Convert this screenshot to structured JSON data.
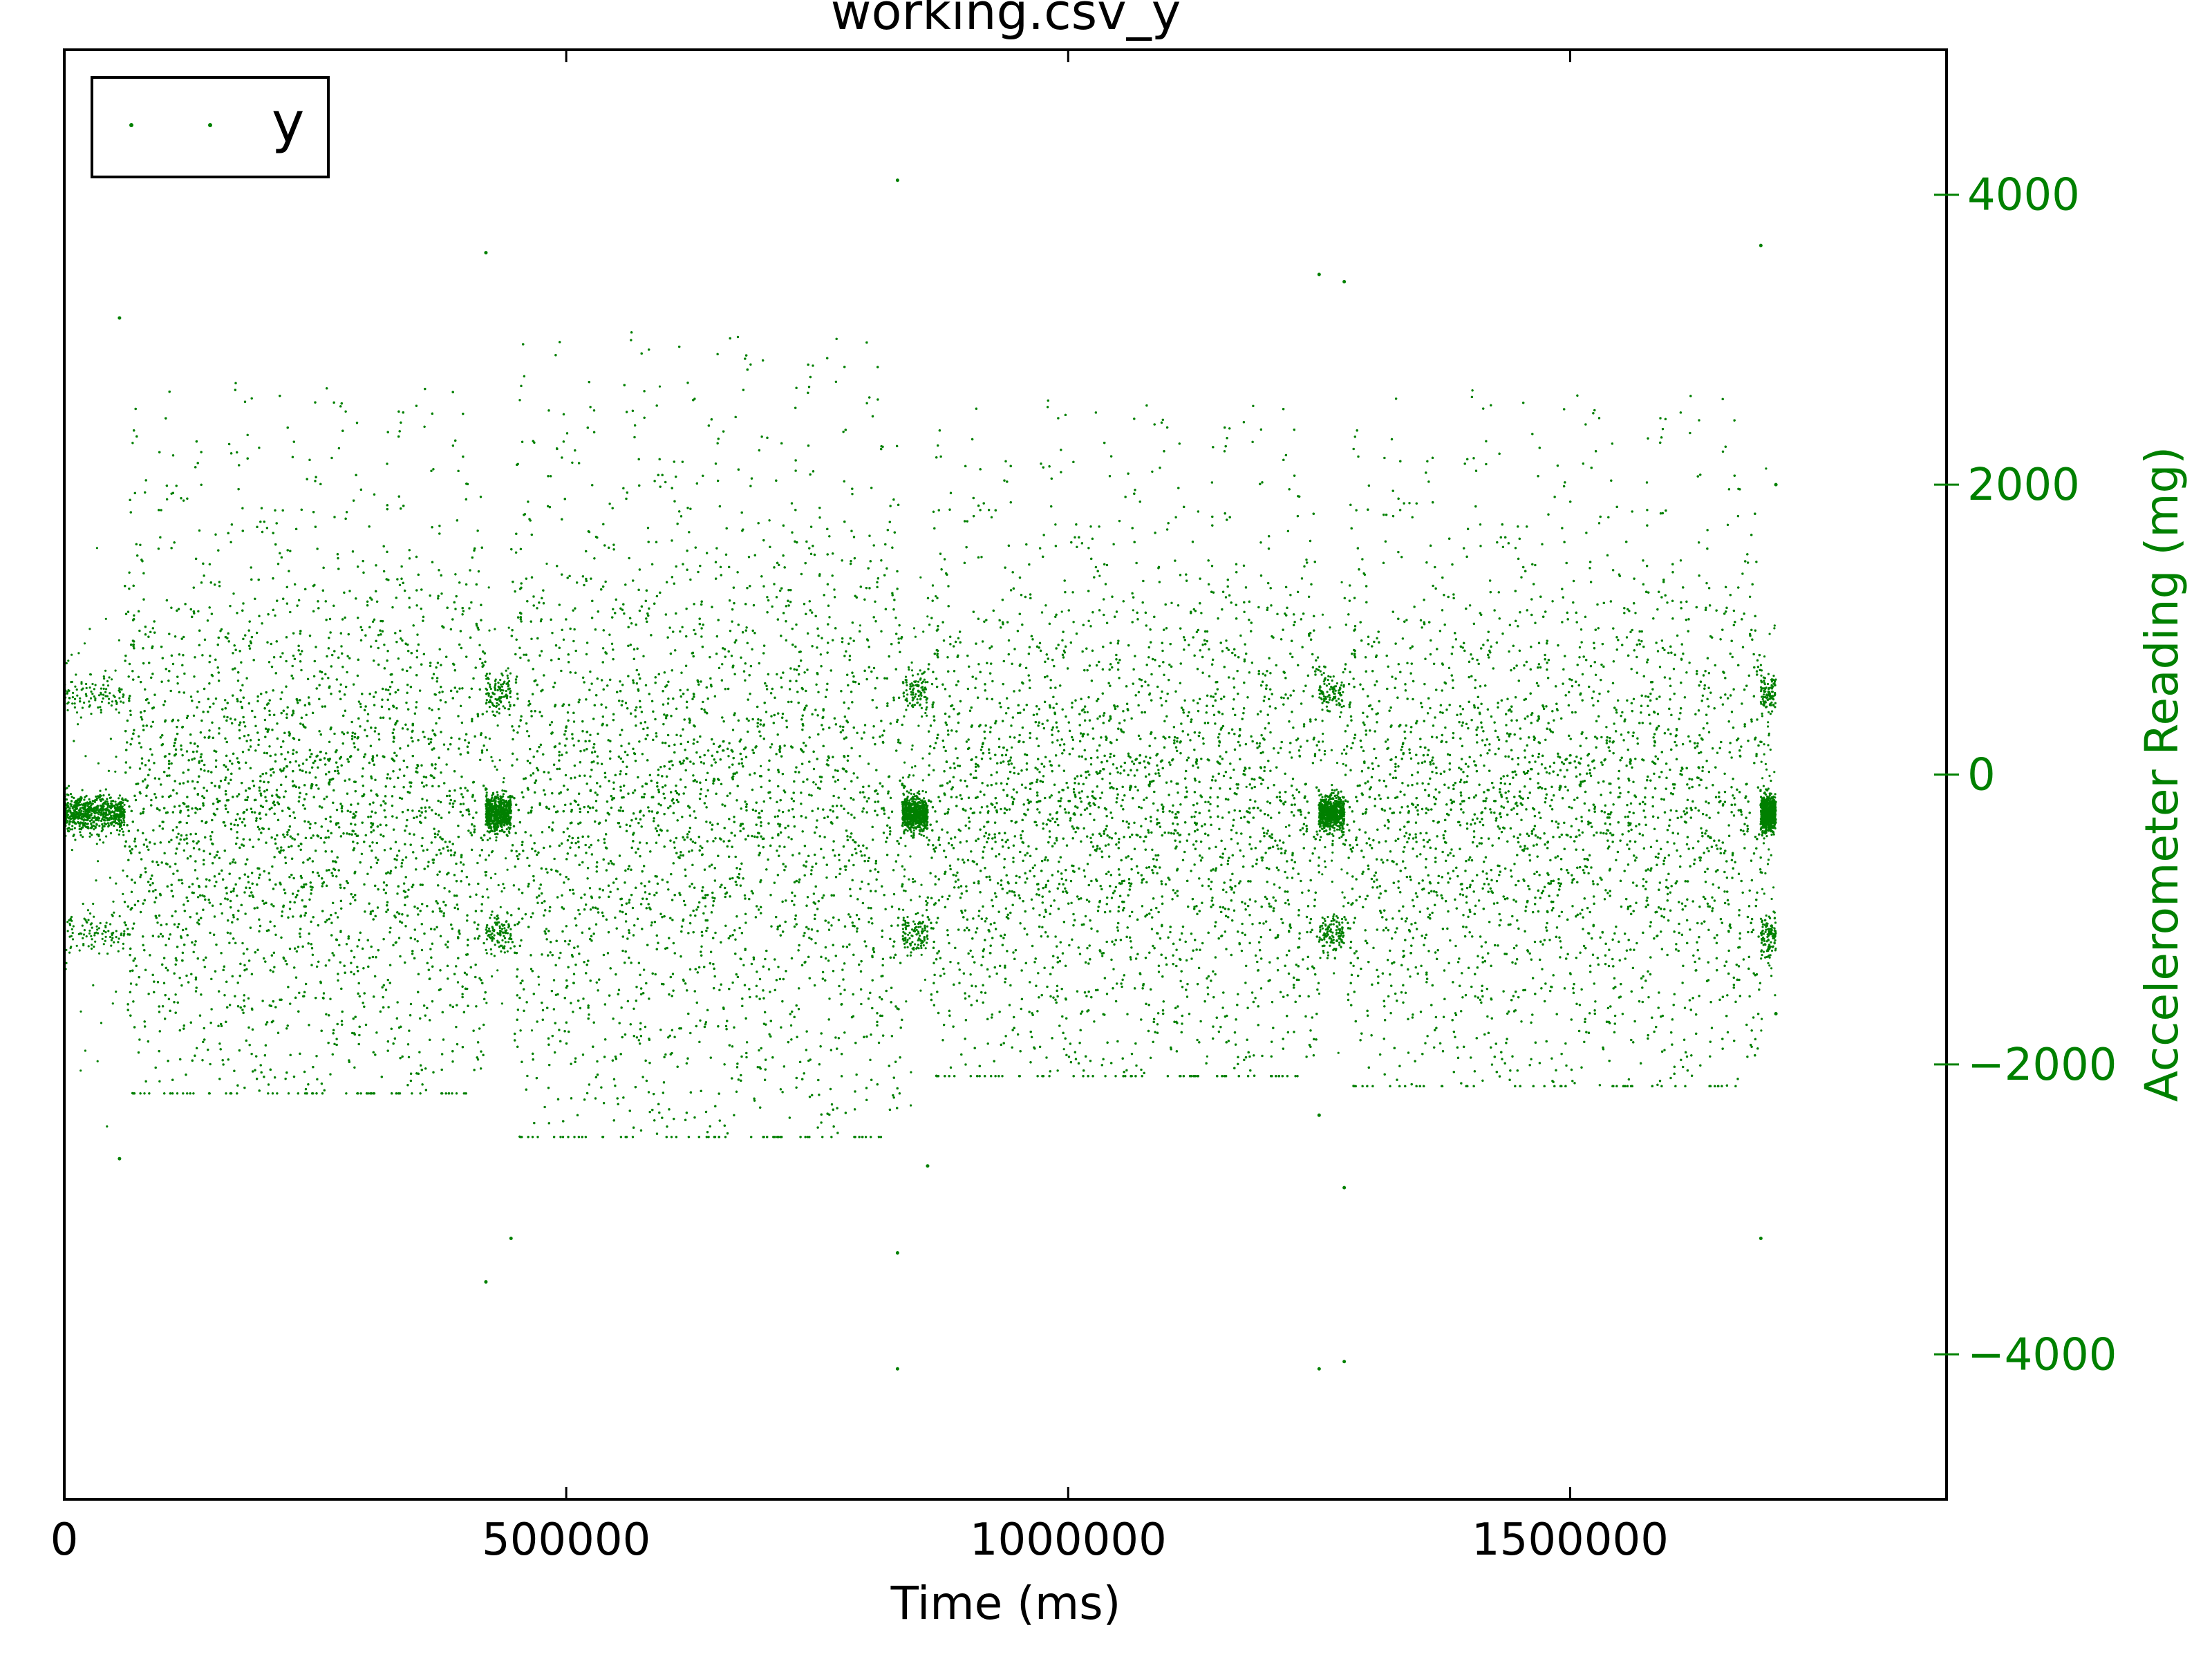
{
  "chart_data": {
    "type": "scatter",
    "title": "working.csv_y",
    "xlabel": "Time (ms)",
    "ylabel": "Accelerometer Reading (mg)",
    "xlim": [
      0,
      1875000
    ],
    "ylim": [
      -5000,
      5000
    ],
    "x_ticks": [
      0,
      500000,
      1000000,
      1500000
    ],
    "x_tick_labels": [
      "0",
      "500000",
      "1000000",
      "1500000"
    ],
    "y_ticks": [
      4000,
      2000,
      0,
      -2000,
      -4000
    ],
    "y_tick_labels": [
      "4000",
      "2000",
      "0",
      "−2000",
      "−4000"
    ],
    "y_axis_side": "right",
    "grid": false,
    "legend_position": "top-left",
    "colors": {
      "series": "#008000",
      "y_axis": "#008000",
      "axes": "#000000"
    },
    "series": [
      {
        "name": "y",
        "marker": "point",
        "segments": [
          {
            "x_range": [
              0,
              60000
            ],
            "y_center": -270,
            "spread": 230,
            "clusters": [
              560,
              -1100
            ]
          },
          {
            "x_range": [
              60000,
              420000
            ],
            "y_center": -300,
            "spread": 950,
            "y_max": 2700,
            "y_min": -2200
          },
          {
            "x_range": [
              420000,
              445000
            ],
            "y_center": -270,
            "spread": 180,
            "clusters": [
              560,
              -1100
            ]
          },
          {
            "x_range": [
              445000,
              835000
            ],
            "y_center": -300,
            "spread": 1100,
            "y_max": 3050,
            "y_min": -2500
          },
          {
            "x_range": [
              835000,
              860000
            ],
            "y_center": -270,
            "spread": 180,
            "clusters": [
              560,
              -1100
            ]
          },
          {
            "x_range": [
              860000,
              1250000
            ],
            "y_center": -300,
            "spread": 900,
            "y_max": 2580,
            "y_min": -2080
          },
          {
            "x_range": [
              1250000,
              1275000
            ],
            "y_center": -270,
            "spread": 180,
            "clusters": [
              560,
              -1100
            ]
          },
          {
            "x_range": [
              1275000,
              1690000
            ],
            "y_center": -300,
            "spread": 900,
            "y_max": 2650,
            "y_min": -2150
          },
          {
            "x_range": [
              1690000,
              1705000
            ],
            "y_center": -270,
            "spread": 180,
            "clusters": [
              560,
              -1100
            ]
          }
        ],
        "outliers": [
          [
            55000,
            3150
          ],
          [
            55000,
            -2650
          ],
          [
            420000,
            3600
          ],
          [
            420000,
            -3500
          ],
          [
            445000,
            -3200
          ],
          [
            830000,
            4100
          ],
          [
            830000,
            -3300
          ],
          [
            830000,
            -4100
          ],
          [
            860000,
            -2700
          ],
          [
            1250000,
            3450
          ],
          [
            1250000,
            -2350
          ],
          [
            1250000,
            -4100
          ],
          [
            1275000,
            3400
          ],
          [
            1275000,
            -2850
          ],
          [
            1275000,
            -4050
          ],
          [
            1690000,
            3650
          ],
          [
            1690000,
            -3200
          ],
          [
            1705000,
            2000
          ],
          [
            1705000,
            -1650
          ]
        ]
      }
    ]
  }
}
